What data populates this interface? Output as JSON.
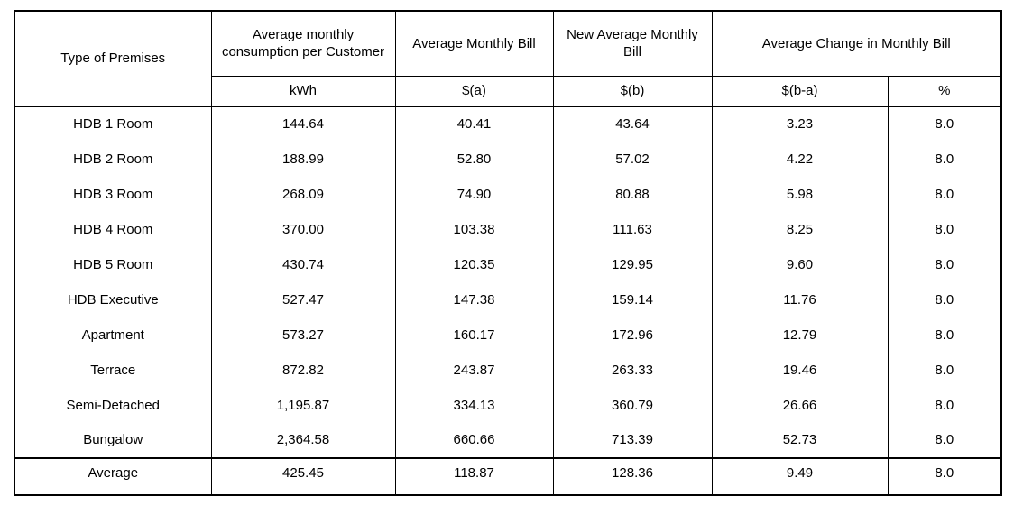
{
  "table": {
    "header": {
      "premises": "Type of Premises",
      "consumption": "Average monthly consumption per Customer",
      "avg_bill": "Average Monthly Bill",
      "new_avg_bill": "New Average Monthly Bill",
      "change": "Average Change in Monthly Bill"
    },
    "units": {
      "consumption": "kWh",
      "avg_bill": "$(a)",
      "new_avg_bill": "$(b)",
      "change_amount": "$(b-a)",
      "change_percent": "%"
    },
    "rows": [
      {
        "premises": "HDB 1 Room",
        "kwh": "144.64",
        "bill_a": "40.41",
        "bill_b": "43.64",
        "change_amount": "3.23",
        "change_percent": "8.0"
      },
      {
        "premises": "HDB 2 Room",
        "kwh": "188.99",
        "bill_a": "52.80",
        "bill_b": "57.02",
        "change_amount": "4.22",
        "change_percent": "8.0"
      },
      {
        "premises": "HDB 3 Room",
        "kwh": "268.09",
        "bill_a": "74.90",
        "bill_b": "80.88",
        "change_amount": "5.98",
        "change_percent": "8.0"
      },
      {
        "premises": "HDB 4 Room",
        "kwh": "370.00",
        "bill_a": "103.38",
        "bill_b": "111.63",
        "change_amount": "8.25",
        "change_percent": "8.0"
      },
      {
        "premises": "HDB 5 Room",
        "kwh": "430.74",
        "bill_a": "120.35",
        "bill_b": "129.95",
        "change_amount": "9.60",
        "change_percent": "8.0"
      },
      {
        "premises": "HDB Executive",
        "kwh": "527.47",
        "bill_a": "147.38",
        "bill_b": "159.14",
        "change_amount": "11.76",
        "change_percent": "8.0"
      },
      {
        "premises": "Apartment",
        "kwh": "573.27",
        "bill_a": "160.17",
        "bill_b": "172.96",
        "change_amount": "12.79",
        "change_percent": "8.0"
      },
      {
        "premises": "Terrace",
        "kwh": "872.82",
        "bill_a": "243.87",
        "bill_b": "263.33",
        "change_amount": "19.46",
        "change_percent": "8.0"
      },
      {
        "premises": "Semi-Detached",
        "kwh": "1,195.87",
        "bill_a": "334.13",
        "bill_b": "360.79",
        "change_amount": "26.66",
        "change_percent": "8.0"
      },
      {
        "premises": "Bungalow",
        "kwh": "2,364.58",
        "bill_a": "660.66",
        "bill_b": "713.39",
        "change_amount": "52.73",
        "change_percent": "8.0"
      }
    ],
    "summary": {
      "premises": "Average",
      "kwh": "425.45",
      "bill_a": "118.87",
      "bill_b": "128.36",
      "change_amount": "9.49",
      "change_percent": "8.0"
    }
  }
}
